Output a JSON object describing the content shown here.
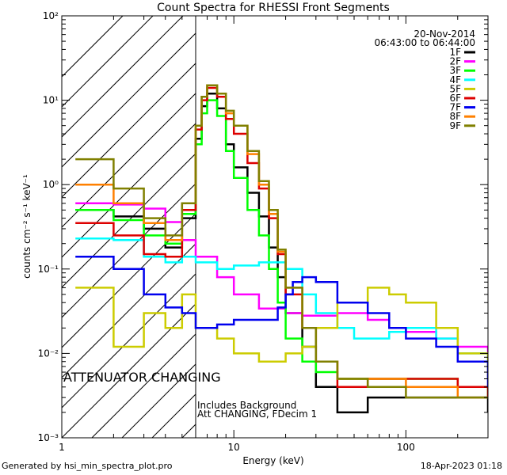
{
  "chart_data": {
    "type": "line",
    "title": "Count Spectra for RHESSI Front Segments",
    "xlabel": "Energy (keV)",
    "ylabel": "counts cm⁻² s⁻¹ keV⁻¹",
    "xscale": "log",
    "yscale": "log",
    "xlim": [
      1,
      300
    ],
    "ylim": [
      0.001,
      100
    ],
    "x_tick_labels": [
      "1",
      "10",
      "100"
    ],
    "y_tick_labels": [
      "10⁻³",
      "10⁻²",
      "10⁻¹",
      "10⁰",
      "10¹",
      "10²"
    ],
    "date": "20-Nov-2014",
    "time_range": "06:43:00 to 06:44:00",
    "attenuator_label": "ATTENUATOR CHANGING",
    "attenuator_color": "#e00000",
    "shaded_region_xmax": 6,
    "background_note": "Includes Background",
    "att_note": "Att CHANGING, FDecim  1",
    "series": [
      {
        "name": "1F",
        "color": "#000000",
        "x": [
          1.2,
          2.0,
          3.0,
          4.0,
          5.0,
          6.0,
          6.5,
          7.0,
          8.0,
          9.0,
          10,
          12,
          14,
          16,
          18,
          20,
          25,
          30,
          40,
          60,
          100,
          200,
          300
        ],
        "y": [
          0.5,
          0.42,
          0.3,
          0.18,
          0.4,
          3.5,
          8.5,
          12,
          8,
          3,
          1.6,
          0.8,
          0.42,
          0.18,
          0.08,
          0.03,
          0.012,
          0.004,
          0.002,
          0.003,
          0.003,
          0.003,
          0.002
        ]
      },
      {
        "name": "2F",
        "color": "#ff00ff",
        "x": [
          1.2,
          2.0,
          3.0,
          4.0,
          5.0,
          6.0,
          8.0,
          10,
          14,
          20,
          25,
          30,
          40,
          60,
          80,
          100,
          150,
          200,
          300
        ],
        "y": [
          0.6,
          0.58,
          0.52,
          0.36,
          0.22,
          0.14,
          0.08,
          0.05,
          0.034,
          0.03,
          0.028,
          0.028,
          0.03,
          0.025,
          0.02,
          0.018,
          0.015,
          0.012,
          0.01
        ]
      },
      {
        "name": "3F",
        "color": "#00ff00",
        "x": [
          1.2,
          2.0,
          3.0,
          4.0,
          5.0,
          6.0,
          6.5,
          7.0,
          8.0,
          9.0,
          10,
          12,
          14,
          16,
          18,
          20,
          25,
          30,
          40,
          60,
          100,
          200,
          300
        ],
        "y": [
          0.5,
          0.38,
          0.25,
          0.2,
          0.45,
          3.0,
          7,
          10,
          6.5,
          2.5,
          1.2,
          0.5,
          0.25,
          0.1,
          0.04,
          0.015,
          0.008,
          0.006,
          0.005,
          0.005,
          0.005,
          0.004,
          0.003
        ]
      },
      {
        "name": "4F",
        "color": "#00ffff",
        "x": [
          1.2,
          2.0,
          3.0,
          4.0,
          5.0,
          6.0,
          8.0,
          10,
          14,
          20,
          25,
          30,
          40,
          50,
          60,
          80,
          100,
          150,
          200,
          300
        ],
        "y": [
          0.23,
          0.22,
          0.14,
          0.12,
          0.14,
          0.12,
          0.1,
          0.11,
          0.12,
          0.1,
          0.05,
          0.03,
          0.02,
          0.015,
          0.015,
          0.018,
          0.02,
          0.015,
          0.01,
          0.008
        ]
      },
      {
        "name": "5F",
        "color": "#cccc00",
        "x": [
          1.2,
          2.0,
          3.0,
          4.0,
          5.0,
          6.0,
          8.0,
          10,
          14,
          20,
          25,
          30,
          40,
          60,
          80,
          100,
          150,
          200,
          300
        ],
        "y": [
          0.06,
          0.012,
          0.03,
          0.02,
          0.05,
          0.02,
          0.015,
          0.01,
          0.008,
          0.01,
          0.012,
          0.02,
          0.04,
          0.06,
          0.05,
          0.04,
          0.02,
          0.01,
          0.005
        ]
      },
      {
        "name": "6F",
        "color": "#dd0000",
        "x": [
          1.2,
          2.0,
          3.0,
          4.0,
          5.0,
          6.0,
          6.5,
          7.0,
          8.0,
          9.0,
          10,
          12,
          14,
          16,
          18,
          20,
          25,
          30,
          40,
          60,
          100,
          200,
          300
        ],
        "y": [
          0.35,
          0.25,
          0.15,
          0.14,
          0.5,
          4.5,
          10,
          14,
          11,
          6,
          4,
          1.8,
          0.9,
          0.4,
          0.15,
          0.05,
          0.02,
          0.008,
          0.004,
          0.005,
          0.005,
          0.004,
          0.003
        ]
      },
      {
        "name": "7F",
        "color": "#0000ee",
        "x": [
          1.2,
          2.0,
          3.0,
          4.0,
          5.0,
          6.0,
          8.0,
          10,
          14,
          18,
          20,
          22,
          25,
          30,
          40,
          60,
          80,
          100,
          150,
          200,
          300
        ],
        "y": [
          0.14,
          0.1,
          0.05,
          0.035,
          0.03,
          0.02,
          0.022,
          0.025,
          0.025,
          0.035,
          0.05,
          0.07,
          0.08,
          0.07,
          0.04,
          0.03,
          0.02,
          0.015,
          0.012,
          0.008,
          0.004
        ]
      },
      {
        "name": "8F",
        "color": "#ff8000",
        "x": [
          1.2,
          2.0,
          3.0,
          4.0,
          5.0,
          6.0,
          6.5,
          7.0,
          8.0,
          9.0,
          10,
          12,
          14,
          16,
          18,
          20,
          25,
          30,
          40,
          60,
          100,
          200,
          300
        ],
        "y": [
          1.0,
          0.6,
          0.35,
          0.22,
          0.6,
          5,
          11,
          15,
          12,
          7,
          5,
          2.3,
          1.0,
          0.45,
          0.16,
          0.06,
          0.02,
          0.008,
          0.005,
          0.005,
          0.004,
          0.003,
          0.003
        ]
      },
      {
        "name": "9F",
        "color": "#808000",
        "x": [
          1.2,
          2.0,
          3.0,
          4.0,
          5.0,
          6.0,
          6.5,
          7.0,
          8.0,
          9.0,
          10,
          12,
          14,
          16,
          18,
          20,
          25,
          30,
          40,
          60,
          100,
          200,
          300
        ],
        "y": [
          2.0,
          0.9,
          0.4,
          0.25,
          0.6,
          5,
          11,
          15,
          12,
          7.5,
          5,
          2.5,
          1.1,
          0.5,
          0.17,
          0.06,
          0.02,
          0.008,
          0.005,
          0.004,
          0.003,
          0.003,
          0.003
        ]
      }
    ]
  },
  "footer": {
    "generated_by": "Generated by hsi_min_spectra_plot.pro",
    "generated_date": "18-Apr-2023 01:18"
  }
}
